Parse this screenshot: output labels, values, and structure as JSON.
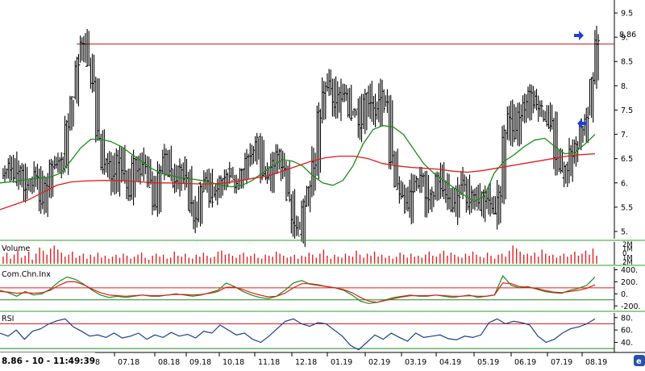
{
  "status_text": "8.86 - 10 - 11:49:39",
  "x_axis": {
    "labels": [
      "8",
      "07.18",
      "08.18",
      "09.18",
      "10.18",
      "11.18",
      "12.18",
      "01.19",
      "02.19",
      "03.19",
      "04.19",
      "05.19",
      "06.19",
      "07.19",
      "08.19"
    ]
  },
  "panels": {
    "price": {
      "y_ticks": [
        "5.",
        "5.5",
        "6.",
        "6.5",
        "7.",
        "7.5",
        "8.",
        "8.5",
        "9.",
        "9.5"
      ],
      "last_value_label": "8.86",
      "resistance_level": 8.86
    },
    "volume": {
      "title": "Volume",
      "ticks": [
        "2M",
        "1M",
        "0.",
        "1M",
        "2M"
      ]
    },
    "ccindex": {
      "title": "Com.Chn.Inx",
      "ticks": [
        "400.",
        "200.",
        "0.",
        "-200."
      ],
      "reference_lines": [
        100,
        -100
      ]
    },
    "rsi": {
      "title": "RSI",
      "ticks": [
        "80.",
        "60.",
        "40."
      ],
      "reference_lines": [
        70,
        30
      ]
    }
  },
  "colors": {
    "price_bars": "#000000",
    "ma_short": "#1a8c1a",
    "ma_long": "#e01c1c",
    "resistance": "#c81414",
    "volume": "#e02020",
    "panel_border": "#2e9e2e",
    "rsi_line": "#1a3f8c",
    "arrow": "#1f3fd8"
  },
  "chart_data": [
    {
      "type": "ohlc",
      "panel": "price",
      "ylim": [
        4.85,
        9.7
      ],
      "series": [
        {
          "name": "price",
          "closes": [
            6.2,
            6.35,
            6.1,
            6.3,
            5.9,
            6.0,
            6.2,
            5.6,
            6.0,
            6.3,
            6.4,
            6.5,
            7.2,
            7.7,
            8.5,
            8.9,
            8.5,
            8.0,
            7.0,
            6.3,
            6.4,
            6.1,
            6.5,
            6.2,
            5.8,
            6.5,
            6.2,
            6.4,
            6.0,
            5.6,
            6.3,
            6.5,
            6.2,
            6.0,
            6.3,
            6.1,
            5.5,
            5.3,
            5.9,
            6.1,
            5.7,
            5.8,
            6.0,
            6.2,
            6.1,
            5.9,
            6.3,
            6.5,
            6.6,
            6.9,
            6.2,
            6.1,
            6.4,
            6.6,
            6.3,
            5.7,
            5.2,
            5.0,
            5.6,
            5.9,
            6.4,
            7.4,
            7.9,
            8.0,
            7.6,
            7.8,
            7.9,
            7.4,
            7.5,
            7.2,
            7.8,
            7.6,
            7.5,
            7.8,
            7.6,
            6.5,
            5.9,
            5.8,
            5.5,
            5.9,
            6.0,
            6.1,
            5.6,
            5.8,
            6.1,
            5.9,
            5.7,
            5.5,
            5.8,
            6.0,
            5.6,
            5.8,
            5.5,
            5.7,
            5.6,
            5.4,
            5.8,
            7.0,
            7.4,
            7.0,
            7.4,
            7.6,
            7.8,
            7.7,
            7.5,
            7.3,
            7.2,
            6.5,
            6.2,
            6.3,
            6.6,
            6.8,
            7.1,
            7.4,
            8.1,
            8.86
          ]
        },
        {
          "name": "moving average (short)",
          "values": [
            6.0,
            6.02,
            6.05,
            6.08,
            6.1,
            6.12,
            6.2,
            6.45,
            6.72,
            6.9,
            6.9,
            6.85,
            6.75,
            6.6,
            6.45,
            6.3,
            6.2,
            6.15,
            6.1,
            6.08,
            6.05,
            6.0,
            5.95,
            5.92,
            5.95,
            6.05,
            6.2,
            6.35,
            6.48,
            6.45,
            6.35,
            6.15,
            6.0,
            5.95,
            6.05,
            6.35,
            6.8,
            7.1,
            7.18,
            7.15,
            7.0,
            6.7,
            6.4,
            6.2,
            6.05,
            5.9,
            5.75,
            5.62,
            5.72,
            6.2,
            6.45,
            6.58,
            6.75,
            6.88,
            6.92,
            6.75,
            6.6,
            6.62,
            6.8,
            7.0
          ]
        },
        {
          "name": "moving average (long)",
          "values": [
            5.45,
            5.55,
            5.65,
            5.8,
            5.95,
            6.02,
            6.04,
            6.05,
            6.05,
            6.04,
            6.02,
            6.0,
            6.0,
            5.99,
            5.98,
            5.98,
            6.0,
            6.05,
            6.1,
            6.15,
            6.25,
            6.35,
            6.45,
            6.52,
            6.55,
            6.55,
            6.5,
            6.4,
            6.35,
            6.32,
            6.3,
            6.28,
            6.24,
            6.22,
            6.25,
            6.3,
            6.35,
            6.4,
            6.45,
            6.5,
            6.55,
            6.58,
            6.6
          ]
        }
      ]
    },
    {
      "type": "bar",
      "panel": "volume",
      "ylim": [
        0,
        2
      ],
      "series": [
        {
          "name": "Volume",
          "values": [
            0.7,
            1.1,
            0.5,
            0.9,
            1.3,
            0.6,
            0.8,
            1.2,
            0.4,
            1.0,
            1.6,
            1.3,
            0.9,
            1.5,
            1.8,
            1.4,
            1.1,
            0.7,
            0.9,
            1.2,
            0.6,
            0.8,
            1.0,
            0.5,
            0.9,
            0.7,
            1.1,
            0.6,
            0.8,
            0.5,
            0.7,
            0.9,
            0.6,
            1.0,
            0.8,
            0.5,
            0.7,
            0.9,
            1.1,
            0.6,
            0.4,
            0.8,
            1.0,
            0.7,
            0.9,
            0.5,
            0.6,
            1.2,
            0.8,
            0.7,
            1.0,
            0.6,
            0.5,
            0.9,
            0.7,
            1.1,
            0.8,
            0.6,
            0.7,
            1.2,
            1.3,
            0.9,
            1.0,
            0.8,
            0.6,
            0.9,
            1.1,
            0.7,
            0.8,
            1.0,
            0.6,
            0.5,
            0.9,
            0.8,
            0.7,
            1.2,
            1.0,
            0.8,
            0.6,
            0.7,
            0.9,
            0.5,
            0.8,
            0.7,
            1.1,
            0.9,
            0.6,
            1.0,
            1.4,
            0.8,
            0.5,
            0.9,
            0.7,
            0.6,
            1.0,
            0.8,
            0.7,
            1.3,
            0.9,
            0.6,
            1.0,
            0.8,
            1.2,
            0.7,
            0.9,
            0.6,
            0.8,
            0.5,
            0.7,
            1.1,
            0.9,
            0.6,
            1.0,
            0.7,
            0.8,
            0.6,
            0.9,
            1.2,
            0.8,
            0.7,
            1.0,
            1.3,
            0.8,
            1.1,
            0.9,
            0.7,
            0.6,
            1.0,
            0.8,
            1.2,
            0.9,
            0.7,
            0.6,
            1.1,
            0.8,
            0.5,
            0.9,
            1.0,
            0.7,
            1.3,
            1.8,
            1.5,
            1.2,
            0.9,
            1.0,
            0.8,
            1.1,
            0.7,
            1.4,
            1.0,
            0.8,
            0.9,
            0.6,
            0.8,
            1.0,
            0.7,
            0.9,
            1.2,
            0.8,
            1.0,
            1.3,
            0.9,
            1.5,
            0.8
          ]
        }
      ]
    },
    {
      "type": "line",
      "panel": "ccindex",
      "ylim": [
        -250,
        420
      ],
      "series": [
        {
          "name": "cci",
          "values": [
            60,
            20,
            -40,
            40,
            -20,
            0,
            80,
            200,
            280,
            240,
            160,
            60,
            -20,
            -60,
            -40,
            -60,
            -40,
            -20,
            -40,
            -40,
            -20,
            0,
            -20,
            -40,
            -20,
            20,
            60,
            180,
            120,
            40,
            -20,
            -60,
            -80,
            -40,
            60,
            180,
            220,
            160,
            140,
            120,
            100,
            60,
            -20,
            -120,
            -160,
            -140,
            -100,
            -60,
            -40,
            -20,
            -40,
            -40,
            -20,
            -40,
            -60,
            -40,
            -20,
            -60,
            -40,
            -20,
            300,
            140,
            100,
            120,
            80,
            40,
            20,
            10,
            60,
            90,
            140,
            280
          ]
        },
        {
          "name": "cci signal",
          "values": [
            40,
            30,
            10,
            20,
            10,
            20,
            60,
            140,
            200,
            200,
            150,
            80,
            20,
            -20,
            -30,
            -40,
            -30,
            -20,
            -30,
            -30,
            -20,
            -10,
            -10,
            -20,
            -10,
            10,
            40,
            110,
            110,
            70,
            20,
            -20,
            -50,
            -40,
            10,
            100,
            170,
            170,
            150,
            120,
            100,
            70,
            20,
            -60,
            -120,
            -140,
            -110,
            -80,
            -50,
            -30,
            -30,
            -30,
            -20,
            -30,
            -40,
            -40,
            -30,
            -40,
            -40,
            -20,
            180,
            170,
            120,
            110,
            90,
            60,
            30,
            20,
            40,
            60,
            90,
            150
          ]
        }
      ]
    },
    {
      "type": "line",
      "panel": "rsi",
      "ylim": [
        25,
        85
      ],
      "series": [
        {
          "name": "RSI",
          "values": [
            55,
            50,
            60,
            45,
            58,
            62,
            70,
            75,
            78,
            65,
            58,
            50,
            52,
            48,
            55,
            47,
            50,
            55,
            45,
            52,
            48,
            56,
            50,
            53,
            47,
            58,
            55,
            68,
            60,
            52,
            55,
            45,
            40,
            50,
            62,
            74,
            78,
            70,
            66,
            72,
            70,
            60,
            50,
            35,
            28,
            40,
            52,
            45,
            55,
            48,
            42,
            55,
            48,
            50,
            52,
            46,
            44,
            50,
            48,
            52,
            72,
            78,
            70,
            74,
            72,
            68,
            50,
            40,
            45,
            55,
            62,
            65,
            70,
            78
          ]
        }
      ]
    }
  ]
}
